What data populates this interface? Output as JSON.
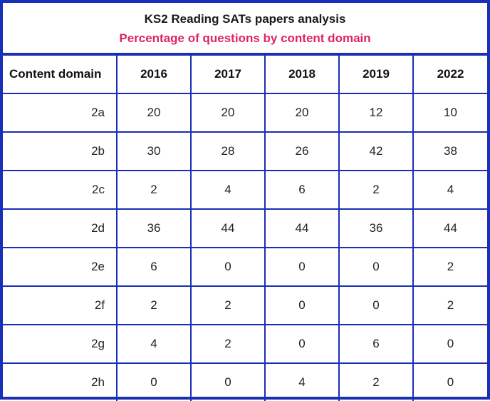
{
  "chart_data": {
    "type": "table",
    "title": "KS2 Reading SATs papers analysis",
    "subtitle": "Percentage of questions by content domain",
    "columns": [
      "Content domain",
      "2016",
      "2017",
      "2018",
      "2019",
      "2022"
    ],
    "rows": [
      {
        "domain": "2a",
        "values": [
          "20",
          "20",
          "20",
          "12",
          "10"
        ]
      },
      {
        "domain": "2b",
        "values": [
          "30",
          "28",
          "26",
          "42",
          "38"
        ]
      },
      {
        "domain": "2c",
        "values": [
          "2",
          "4",
          "6",
          "2",
          "4"
        ]
      },
      {
        "domain": "2d",
        "values": [
          "36",
          "44",
          "44",
          "36",
          "44"
        ]
      },
      {
        "domain": "2e",
        "values": [
          "6",
          "0",
          "0",
          "0",
          "2"
        ]
      },
      {
        "domain": "2f",
        "values": [
          "2",
          "2",
          "0",
          "0",
          "2"
        ]
      },
      {
        "domain": "2g",
        "values": [
          "4",
          "2",
          "0",
          "6",
          "0"
        ]
      },
      {
        "domain": "2h",
        "values": [
          "0",
          "0",
          "4",
          "2",
          "0"
        ]
      }
    ]
  },
  "colors": {
    "border": "#1a2fb5",
    "subtitle": "#e0245e"
  }
}
